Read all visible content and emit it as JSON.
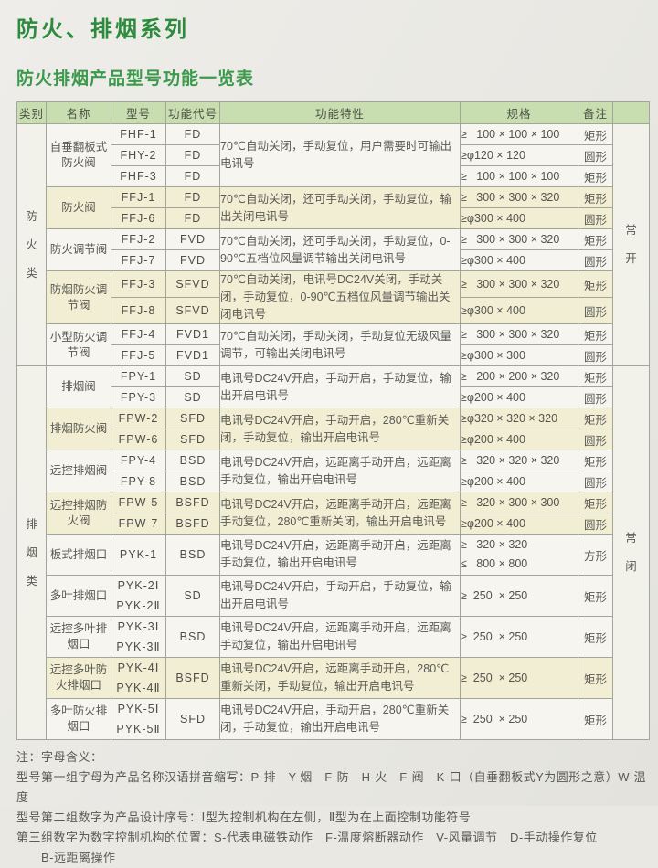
{
  "page": {
    "title": "防火、排烟系列",
    "subtitle": "防火排烟产品型号功能一览表"
  },
  "colors": {
    "title_green": "#2e8b3d",
    "subtitle_green": "#3c9a4d",
    "header_green": "#c8ddb0",
    "row_cream": "#f1eed4",
    "row_plain": "#f6f5ef",
    "border_gray": "#a2a698"
  },
  "table": {
    "columns": [
      "类别",
      "名称",
      "型号",
      "功能代号",
      "功能特性",
      "规格",
      "备注",
      ""
    ],
    "sections": [
      {
        "category": "防火类",
        "state": "常开",
        "groups": [
          {
            "name": "自垂翻板式防火阀",
            "tint": false,
            "features": "70℃自动关闭，手动复位，用户需要时可输出电讯号",
            "rows": [
              {
                "models": [
                  "FHF-1"
                ],
                "code": "FD",
                "specs": [
                  "≥   100 × 100 × 100"
                ],
                "shape": "矩形"
              },
              {
                "models": [
                  "FHY-2"
                ],
                "code": "FD",
                "specs": [
                  "≥φ120 × 120"
                ],
                "shape": "圆形"
              },
              {
                "models": [
                  "FHF-3"
                ],
                "code": "FD",
                "specs": [
                  "≥   100 × 100 × 100"
                ],
                "shape": "矩形"
              }
            ]
          },
          {
            "name": "防火阀",
            "tint": true,
            "features": "70℃自动关闭，还可手动关闭，手动复位，输出关闭电讯号",
            "rows": [
              {
                "models": [
                  "FFJ-1"
                ],
                "code": "FD",
                "specs": [
                  "≥   300 × 300 × 320"
                ],
                "shape": "矩形"
              },
              {
                "models": [
                  "FFJ-6"
                ],
                "code": "FD",
                "specs": [
                  "≥φ300 × 400"
                ],
                "shape": "圆形"
              }
            ]
          },
          {
            "name": "防火调节阀",
            "tint": false,
            "features": "70℃自动关闭，还可手动关闭，手动复位，0-90℃五档位风量调节输出关闭电讯号",
            "rows": [
              {
                "models": [
                  "FFJ-2"
                ],
                "code": "FVD",
                "specs": [
                  "≥   300 × 300 × 320"
                ],
                "shape": "矩形"
              },
              {
                "models": [
                  "FFJ-7"
                ],
                "code": "FVD",
                "specs": [
                  "≥φ300 × 400"
                ],
                "shape": "圆形"
              }
            ]
          },
          {
            "name": "防烟防火调节阀",
            "tint": true,
            "features": "70℃自动关闭，电讯号DC24V关闭，手动关闭，手动复位，0-90℃五档位风量调节输出关闭电讯号",
            "rows": [
              {
                "models": [
                  "FFJ-3"
                ],
                "code": "SFVD",
                "specs": [
                  "≥   300 × 300 × 320"
                ],
                "shape": "矩形"
              },
              {
                "models": [
                  "FFJ-8"
                ],
                "code": "SFVD",
                "specs": [
                  "≥φ300 × 400"
                ],
                "shape": "圆形"
              }
            ]
          },
          {
            "name": "小型防火调节阀",
            "tint": false,
            "features": "70℃自动关闭，手动关闭，手动复位无级风量调节，可输出关闭电讯号",
            "rows": [
              {
                "models": [
                  "FFJ-4"
                ],
                "code": "FVD1",
                "specs": [
                  "≥   300 × 300 × 320"
                ],
                "shape": "矩形"
              },
              {
                "models": [
                  "FFJ-5"
                ],
                "code": "FVD1",
                "specs": [
                  "≥φ300 × 300"
                ],
                "shape": "圆形"
              }
            ]
          }
        ]
      },
      {
        "category": "排烟类",
        "state": "常闭",
        "groups": [
          {
            "name": "排烟阀",
            "tint": false,
            "features": "电讯号DC24V开启，手动开启，手动复位，输出开启电讯号",
            "rows": [
              {
                "models": [
                  "FPY-1"
                ],
                "code": "SD",
                "specs": [
                  "≥   200 × 200 × 320"
                ],
                "shape": "矩形"
              },
              {
                "models": [
                  "FPY-3"
                ],
                "code": "SD",
                "specs": [
                  "≥φ200 × 400"
                ],
                "shape": "圆形"
              }
            ]
          },
          {
            "name": "排烟防火阀",
            "tint": true,
            "features": "电讯号DC24V开启，手动开启，280℃重新关闭，手动复位，输出开启电讯号",
            "rows": [
              {
                "models": [
                  "FPW-2"
                ],
                "code": "SFD",
                "specs": [
                  "≥φ320 × 320 × 320"
                ],
                "shape": "矩形"
              },
              {
                "models": [
                  "FPW-6"
                ],
                "code": "SFD",
                "specs": [
                  "≥φ200 × 400"
                ],
                "shape": "圆形"
              }
            ]
          },
          {
            "name": "远控排烟阀",
            "tint": false,
            "features": "电讯号DC24V开启，远距离手动开启，远距离手动复位，输出开启电讯号",
            "rows": [
              {
                "models": [
                  "FPY-4"
                ],
                "code": "BSD",
                "specs": [
                  "≥   320 × 320 × 320"
                ],
                "shape": "矩形"
              },
              {
                "models": [
                  "FPY-8"
                ],
                "code": "BSD",
                "specs": [
                  "≥φ200 × 400"
                ],
                "shape": "圆形"
              }
            ]
          },
          {
            "name": "远控排烟防火阀",
            "tint": true,
            "features": "电讯号DC24V开启，远距离手动开启，远距离手动复位，280℃重新关闭，输出开启电讯号",
            "rows": [
              {
                "models": [
                  "FPW-5"
                ],
                "code": "BSFD",
                "specs": [
                  "≥   320 × 300 × 300"
                ],
                "shape": "矩形"
              },
              {
                "models": [
                  "FPW-7"
                ],
                "code": "BSFD",
                "specs": [
                  "≥φ200 × 400"
                ],
                "shape": "圆形"
              }
            ]
          },
          {
            "name": "板式排烟口",
            "tint": false,
            "features": "电讯号DC24V开启，远距离手动开启，远距离手动复位，输出开启电讯号",
            "rows": [
              {
                "models": [
                  "PYK-1"
                ],
                "code": "BSD",
                "specs": [
                  "≥   320 × 320",
                  "≤   800 × 800"
                ],
                "shape": "方形"
              }
            ]
          },
          {
            "name": "多叶排烟口",
            "tint": false,
            "features": "电讯号DC24V开启，手动开启，手动复位，输出开启电讯号",
            "rows": [
              {
                "models": [
                  "PYK-2Ⅰ",
                  "PYK-2Ⅱ"
                ],
                "code": "SD",
                "specs": [
                  "≥  250  × 250"
                ],
                "shape": "矩形"
              }
            ]
          },
          {
            "name": "远控多叶排烟口",
            "tint": false,
            "features": "电讯号DC24V开启，远距离手动开启，远距离手动复位，输出开启电讯号",
            "rows": [
              {
                "models": [
                  "PYK-3Ⅰ",
                  "PYK-3Ⅱ"
                ],
                "code": "BSD",
                "specs": [
                  "≥  250  × 250"
                ],
                "shape": "矩形"
              }
            ]
          },
          {
            "name": "远控多叶防火排烟口",
            "tint": true,
            "features": "电讯号DC24V开启，远距离手动开启，280℃重新关闭，手动复位，输出开启电讯号",
            "rows": [
              {
                "models": [
                  "PYK-4Ⅰ",
                  "PYK-4Ⅱ"
                ],
                "code": "BSFD",
                "specs": [
                  "≥  250  × 250"
                ],
                "shape": "矩形"
              }
            ]
          },
          {
            "name": "多叶防火排烟口",
            "tint": false,
            "features": "电讯号DC24V开启，手动开启，280℃重新关闭，手动复位，输出开启电讯号",
            "rows": [
              {
                "models": [
                  "PYK-5Ⅰ",
                  "PYK-5Ⅱ"
                ],
                "code": "SFD",
                "specs": [
                  "≥  250  × 250"
                ],
                "shape": "矩形"
              }
            ]
          }
        ]
      }
    ]
  },
  "notes": {
    "lines": [
      "注：字母含义：",
      "型号第一组字母为产品名称汉语拼音缩写：P-排　Y-烟　F-防　H-火　F-阀　K-口（自垂翻板式Y为圆形之意）W-温度",
      "型号第二组数字为产品设计序号：Ⅰ型为控制机构在左侧，Ⅱ型为在上面控制功能符号",
      "第三组数字为数字控制机构的位置：S-代表电磁铁动作　F-温度熔断器动作　V-风量调节　D-手动操作复位",
      "　　B-远距离操作"
    ]
  }
}
